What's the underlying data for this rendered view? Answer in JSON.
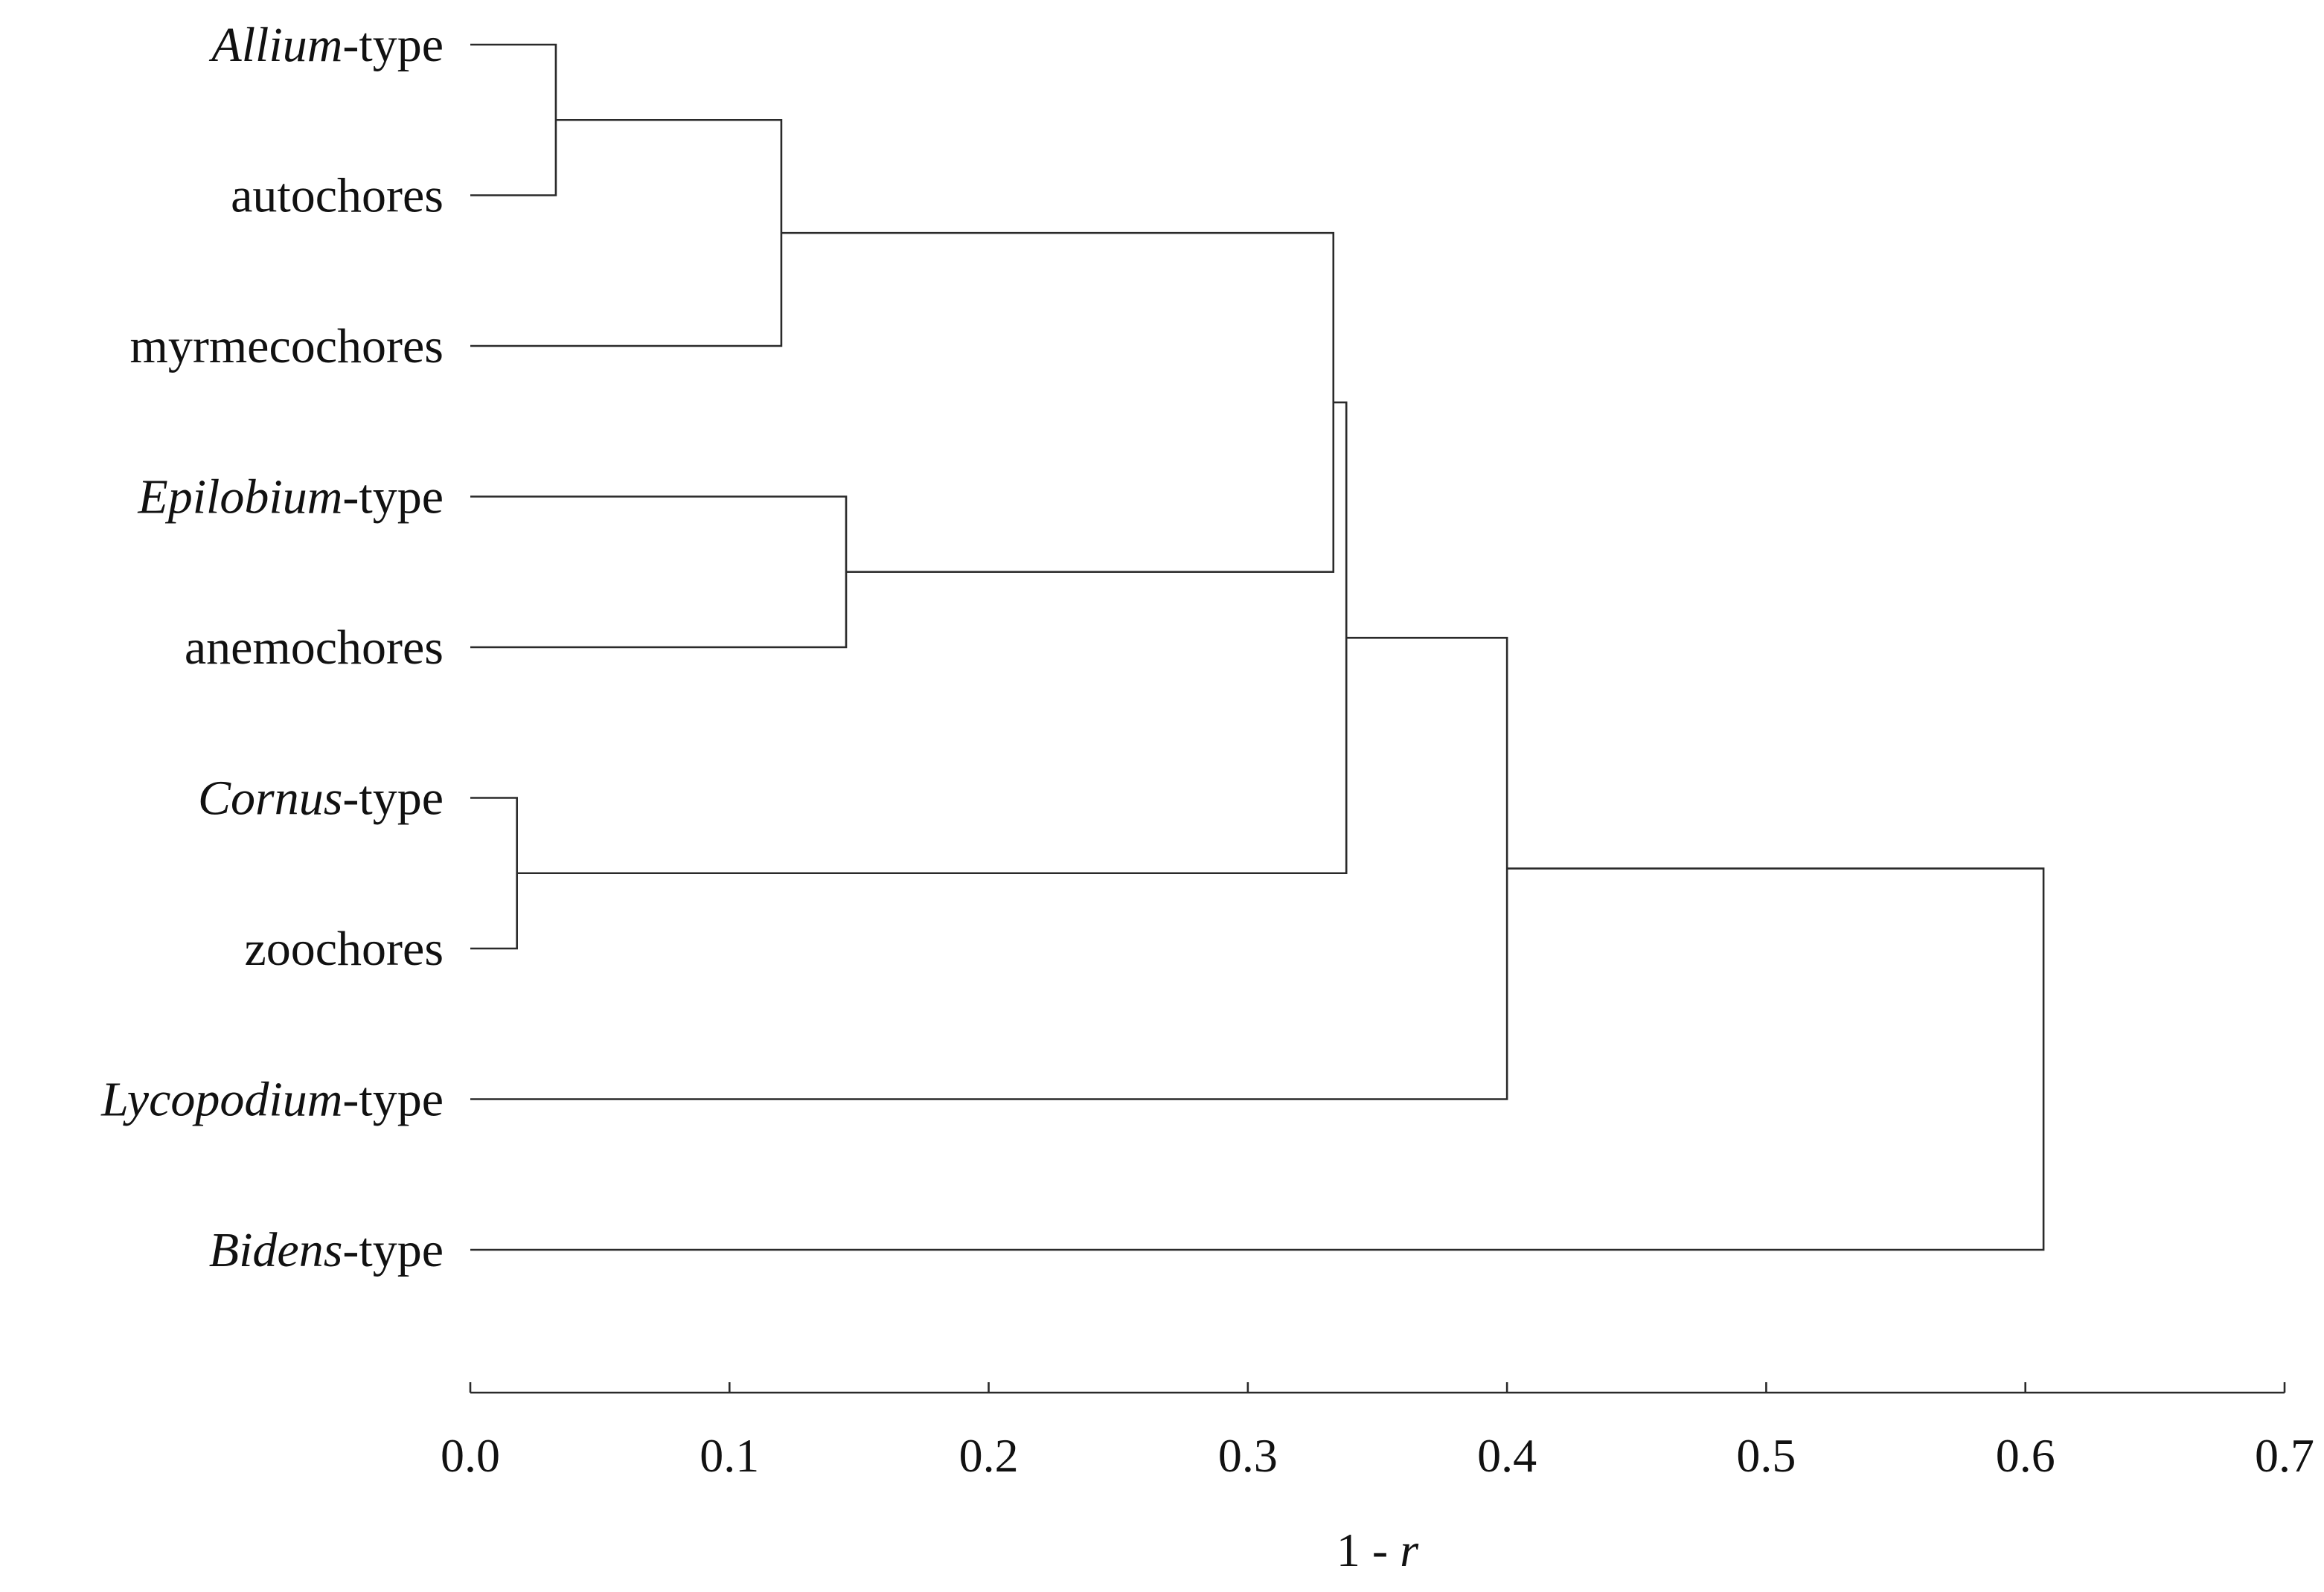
{
  "chart_data": {
    "type": "dendrogram",
    "xlabel": {
      "pre": "1 - ",
      "var": "r"
    },
    "xlim": [
      0.0,
      0.7
    ],
    "ticks": [
      "0.0",
      "0.1",
      "0.2",
      "0.3",
      "0.4",
      "0.5",
      "0.6",
      "0.7"
    ],
    "grid": false,
    "leaves": [
      {
        "id": "allium",
        "italic": "Allium",
        "rest": "-type"
      },
      {
        "id": "autochores",
        "italic": "",
        "rest": "autochores"
      },
      {
        "id": "myrmecochores",
        "italic": "",
        "rest": "myrmecochores"
      },
      {
        "id": "epilobium",
        "italic": "Epilobium",
        "rest": "-type"
      },
      {
        "id": "anemochores",
        "italic": "",
        "rest": "anemochores"
      },
      {
        "id": "cornus",
        "italic": "Cornus",
        "rest": "-type"
      },
      {
        "id": "zoochores",
        "italic": "",
        "rest": "zoochores"
      },
      {
        "id": "lycopodium",
        "italic": "Lycopodium",
        "rest": "-type"
      },
      {
        "id": "bidens",
        "italic": "Bidens",
        "rest": "-type"
      }
    ],
    "merges": [
      {
        "id": "m1",
        "left": "allium",
        "right": "autochores",
        "height": 0.033
      },
      {
        "id": "m2",
        "left": "m1",
        "right": "myrmecochores",
        "height": 0.12
      },
      {
        "id": "m3",
        "left": "epilobium",
        "right": "anemochores",
        "height": 0.145
      },
      {
        "id": "m4",
        "left": "cornus",
        "right": "zoochores",
        "height": 0.018
      },
      {
        "id": "m5",
        "left": "m2",
        "right": "m3",
        "height": 0.333
      },
      {
        "id": "m6",
        "left": "m5",
        "right": "m4",
        "height": 0.338
      },
      {
        "id": "m7",
        "left": "m6",
        "right": "lycopodium",
        "height": 0.4
      },
      {
        "id": "m8",
        "left": "m7",
        "right": "bidens",
        "height": 0.607
      }
    ]
  },
  "colors": {
    "line": "#2a2a2a",
    "text": "#111111",
    "background": "#ffffff"
  }
}
